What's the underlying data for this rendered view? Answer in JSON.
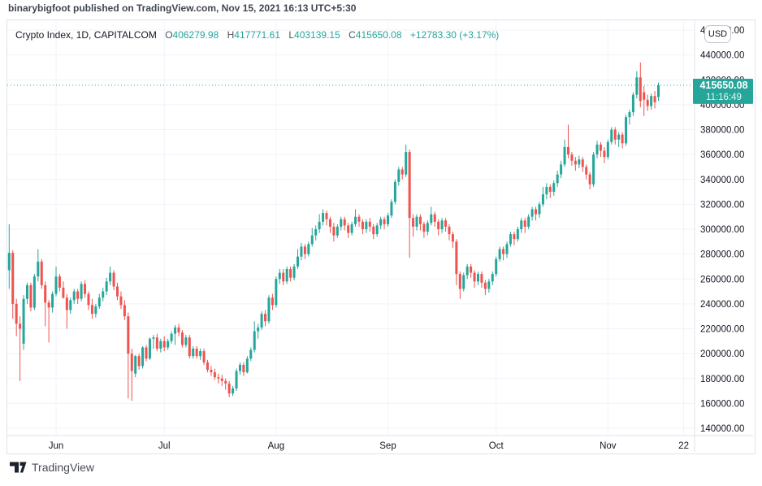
{
  "byline": "binarybigfoot published on TradingView.com, Nov 15, 2021 16:13 UTC+5:30",
  "legend": {
    "title": "Crypto Index, 1D, CAPITALCOM",
    "o_label": "O",
    "o_value": "406279.98",
    "h_label": "H",
    "h_value": "417771.61",
    "l_label": "L",
    "l_value": "403139.15",
    "c_label": "C",
    "c_value": "415650.08",
    "change": "+12783.30 (+3.17%)"
  },
  "currency_button_label": "USD",
  "price_label": {
    "price": "415650.08",
    "countdown": "11:16:49"
  },
  "watermark_text": "TradingView",
  "colors": {
    "up": "#26a69a",
    "down": "#ef5350",
    "grid": "#f0f3fa",
    "axis_text": "#131722",
    "frame_border": "#e0e3eb",
    "last_price_line": "#26a69a",
    "last_price_label_bg": "#26a69a",
    "legend_value": "#26a69a"
  },
  "chart_data": {
    "type": "candlestick",
    "symbol": "Crypto Index",
    "interval": "1D",
    "exchange": "CAPITALCOM",
    "start_date": "2021-05-19",
    "end_date": "2021-11-15",
    "last_close": 415650.08,
    "grid": true,
    "y_axis": {
      "min": 140000,
      "max": 460000,
      "step": 20000,
      "tick_labels": [
        "460000.00",
        "440000.00",
        "420000.00",
        "400000.00",
        "380000.00",
        "360000.00",
        "340000.00",
        "320000.00",
        "300000.00",
        "280000.00",
        "260000.00",
        "240000.00",
        "220000.00",
        "200000.00",
        "180000.00",
        "160000.00",
        "140000.00"
      ]
    },
    "x_axis": {
      "tick_labels": [
        "Jun",
        "Jul",
        "Aug",
        "Sep",
        "Oct",
        "Nov",
        "22"
      ],
      "tick_day_index": [
        13,
        43,
        74,
        105,
        135,
        166,
        187
      ]
    },
    "candles": [
      [
        267000,
        304000,
        252000,
        281000
      ],
      [
        281000,
        283000,
        228000,
        240000
      ],
      [
        240000,
        244000,
        214000,
        224000
      ],
      [
        224000,
        230000,
        178000,
        220000
      ],
      [
        208000,
        247000,
        203000,
        244000
      ],
      [
        244000,
        257000,
        240000,
        255000
      ],
      [
        255000,
        257000,
        234000,
        237000
      ],
      [
        237000,
        264000,
        235000,
        262000
      ],
      [
        262000,
        284000,
        258000,
        274000
      ],
      [
        274000,
        276000,
        252000,
        255000
      ],
      [
        255000,
        258000,
        222000,
        241000
      ],
      [
        241000,
        243000,
        209000,
        237000
      ],
      [
        237000,
        250000,
        233000,
        248000
      ],
      [
        248000,
        270000,
        246000,
        262000
      ],
      [
        262000,
        264000,
        250000,
        253000
      ],
      [
        253000,
        258000,
        244000,
        245000
      ],
      [
        245000,
        248000,
        220000,
        235000
      ],
      [
        235000,
        245000,
        232000,
        243000
      ],
      [
        243000,
        252000,
        240000,
        250000
      ],
      [
        250000,
        252000,
        240000,
        244000
      ],
      [
        244000,
        258000,
        242000,
        256000
      ],
      [
        256000,
        259000,
        245000,
        248000
      ],
      [
        248000,
        250000,
        235000,
        239000
      ],
      [
        239000,
        244000,
        228000,
        232000
      ],
      [
        232000,
        240000,
        229000,
        238000
      ],
      [
        238000,
        248000,
        236000,
        245000
      ],
      [
        245000,
        253000,
        242000,
        250000
      ],
      [
        250000,
        261000,
        247000,
        258000
      ],
      [
        258000,
        270000,
        255000,
        265000
      ],
      [
        265000,
        267000,
        251000,
        254000
      ],
      [
        254000,
        257000,
        243000,
        246000
      ],
      [
        246000,
        250000,
        236000,
        239000
      ],
      [
        239000,
        243000,
        227000,
        230000
      ],
      [
        230000,
        233000,
        164000,
        200000
      ],
      [
        200000,
        204000,
        162000,
        186000
      ],
      [
        184000,
        199000,
        181000,
        198000
      ],
      [
        198000,
        200000,
        187000,
        190000
      ],
      [
        190000,
        206000,
        188000,
        205000
      ],
      [
        205000,
        207000,
        194000,
        196000
      ],
      [
        196000,
        213000,
        195000,
        212000
      ],
      [
        212000,
        215000,
        204000,
        213000
      ],
      [
        213000,
        216000,
        202000,
        204000
      ],
      [
        204000,
        212000,
        201000,
        210000
      ],
      [
        210000,
        214000,
        202000,
        205000
      ],
      [
        205000,
        212000,
        203000,
        210000
      ],
      [
        210000,
        218000,
        208000,
        216000
      ],
      [
        216000,
        223000,
        207000,
        221000
      ],
      [
        221000,
        224000,
        214000,
        217000
      ],
      [
        217000,
        219000,
        205000,
        207000
      ],
      [
        207000,
        215000,
        205000,
        213000
      ],
      [
        213000,
        215000,
        196000,
        198000
      ],
      [
        198000,
        206000,
        196000,
        204000
      ],
      [
        204000,
        206000,
        196000,
        198000
      ],
      [
        198000,
        204000,
        195000,
        202000
      ],
      [
        202000,
        204000,
        191000,
        193000
      ],
      [
        193000,
        195000,
        185000,
        187000
      ],
      [
        187000,
        190000,
        182000,
        185000
      ],
      [
        185000,
        188000,
        179000,
        181000
      ],
      [
        181000,
        184000,
        176000,
        180000
      ],
      [
        180000,
        183000,
        174000,
        178000
      ],
      [
        178000,
        180000,
        171000,
        176000
      ],
      [
        176000,
        178000,
        165000,
        168000
      ],
      [
        168000,
        174000,
        166000,
        172000
      ],
      [
        172000,
        188000,
        170000,
        186000
      ],
      [
        186000,
        193000,
        183000,
        191000
      ],
      [
        191000,
        193000,
        182000,
        185000
      ],
      [
        185000,
        198000,
        184000,
        196000
      ],
      [
        196000,
        205000,
        194000,
        203000
      ],
      [
        203000,
        226000,
        201000,
        218000
      ],
      [
        218000,
        224000,
        212000,
        221000
      ],
      [
        221000,
        234000,
        219000,
        232000
      ],
      [
        232000,
        235000,
        222000,
        226000
      ],
      [
        226000,
        247000,
        224000,
        245000
      ],
      [
        245000,
        248000,
        235000,
        239000
      ],
      [
        239000,
        262000,
        237000,
        260000
      ],
      [
        260000,
        268000,
        256000,
        265000
      ],
      [
        265000,
        268000,
        255000,
        258000
      ],
      [
        258000,
        270000,
        256000,
        268000
      ],
      [
        268000,
        270000,
        258000,
        261000
      ],
      [
        261000,
        272000,
        259000,
        270000
      ],
      [
        270000,
        284000,
        268000,
        278000
      ],
      [
        278000,
        289000,
        275000,
        286000
      ],
      [
        286000,
        288000,
        276000,
        280000
      ],
      [
        280000,
        290000,
        278000,
        288000
      ],
      [
        288000,
        301000,
        286000,
        295000
      ],
      [
        295000,
        303000,
        291000,
        300000
      ],
      [
        300000,
        312000,
        297000,
        306000
      ],
      [
        306000,
        316000,
        303000,
        313000
      ],
      [
        313000,
        315000,
        303000,
        308000
      ],
      [
        308000,
        310000,
        297000,
        302000
      ],
      [
        302000,
        305000,
        290000,
        295000
      ],
      [
        295000,
        304000,
        293000,
        302000
      ],
      [
        302000,
        310000,
        299000,
        308000
      ],
      [
        308000,
        310000,
        299000,
        303000
      ],
      [
        303000,
        305000,
        293000,
        297000
      ],
      [
        297000,
        306000,
        295000,
        304000
      ],
      [
        304000,
        316000,
        302000,
        310000
      ],
      [
        310000,
        312000,
        302000,
        306000
      ],
      [
        306000,
        308000,
        296000,
        300000
      ],
      [
        300000,
        308000,
        297000,
        306000
      ],
      [
        306000,
        309000,
        298000,
        302000
      ],
      [
        302000,
        304000,
        292000,
        296000
      ],
      [
        296000,
        305000,
        294000,
        303000
      ],
      [
        303000,
        310000,
        300000,
        308000
      ],
      [
        308000,
        310000,
        300000,
        304000
      ],
      [
        304000,
        313000,
        302000,
        311000
      ],
      [
        311000,
        324000,
        309000,
        322000
      ],
      [
        322000,
        340000,
        320000,
        338000
      ],
      [
        338000,
        350000,
        335000,
        348000
      ],
      [
        348000,
        350000,
        340000,
        344000
      ],
      [
        344000,
        368000,
        342000,
        362000
      ],
      [
        362000,
        364000,
        277000,
        309000
      ],
      [
        309000,
        312000,
        294000,
        302000
      ],
      [
        302000,
        312000,
        299000,
        310000
      ],
      [
        310000,
        312000,
        299000,
        304000
      ],
      [
        304000,
        306000,
        293000,
        298000
      ],
      [
        298000,
        307000,
        295000,
        305000
      ],
      [
        305000,
        318000,
        303000,
        312000
      ],
      [
        312000,
        314000,
        302000,
        306000
      ],
      [
        306000,
        308000,
        295000,
        300000
      ],
      [
        300000,
        309000,
        297000,
        307000
      ],
      [
        307000,
        309000,
        298000,
        302000
      ],
      [
        302000,
        304000,
        291000,
        296000
      ],
      [
        296000,
        298000,
        285000,
        290000
      ],
      [
        290000,
        292000,
        255000,
        264000
      ],
      [
        264000,
        266000,
        244000,
        252000
      ],
      [
        252000,
        265000,
        250000,
        263000
      ],
      [
        263000,
        272000,
        260000,
        270000
      ],
      [
        270000,
        272000,
        261000,
        265000
      ],
      [
        265000,
        267000,
        253000,
        258000
      ],
      [
        258000,
        266000,
        255000,
        264000
      ],
      [
        264000,
        266000,
        253000,
        257000
      ],
      [
        257000,
        259000,
        247000,
        252000
      ],
      [
        252000,
        260000,
        249000,
        258000
      ],
      [
        258000,
        266000,
        255000,
        264000
      ],
      [
        264000,
        278000,
        262000,
        276000
      ],
      [
        276000,
        286000,
        274000,
        284000
      ],
      [
        284000,
        286000,
        275000,
        280000
      ],
      [
        280000,
        290000,
        277000,
        288000
      ],
      [
        288000,
        298000,
        286000,
        296000
      ],
      [
        296000,
        298000,
        287000,
        292000
      ],
      [
        292000,
        302000,
        290000,
        300000
      ],
      [
        300000,
        309000,
        297000,
        307000
      ],
      [
        307000,
        309000,
        297000,
        302000
      ],
      [
        302000,
        312000,
        300000,
        310000
      ],
      [
        310000,
        318000,
        307000,
        316000
      ],
      [
        316000,
        318000,
        307000,
        312000
      ],
      [
        312000,
        322000,
        309000,
        320000
      ],
      [
        320000,
        334000,
        318000,
        328000
      ],
      [
        328000,
        337000,
        324000,
        334000
      ],
      [
        334000,
        336000,
        325000,
        330000
      ],
      [
        330000,
        339000,
        327000,
        337000
      ],
      [
        337000,
        347000,
        334000,
        344000
      ],
      [
        344000,
        355000,
        341000,
        352000
      ],
      [
        352000,
        372000,
        350000,
        366000
      ],
      [
        366000,
        384000,
        357000,
        360000
      ],
      [
        360000,
        362000,
        351000,
        355000
      ],
      [
        355000,
        358000,
        347000,
        352000
      ],
      [
        352000,
        359000,
        349000,
        356000
      ],
      [
        356000,
        358000,
        346000,
        350000
      ],
      [
        350000,
        352000,
        340000,
        344000
      ],
      [
        344000,
        346000,
        332000,
        336000
      ],
      [
        336000,
        362000,
        334000,
        360000
      ],
      [
        360000,
        371000,
        357000,
        368000
      ],
      [
        368000,
        370000,
        358000,
        363000
      ],
      [
        363000,
        366000,
        353000,
        358000
      ],
      [
        358000,
        372000,
        356000,
        370000
      ],
      [
        370000,
        382000,
        368000,
        380000
      ],
      [
        380000,
        382000,
        368000,
        372000
      ],
      [
        372000,
        378000,
        366000,
        376000
      ],
      [
        376000,
        378000,
        365000,
        369000
      ],
      [
        369000,
        392000,
        367000,
        390000
      ],
      [
        390000,
        396000,
        384000,
        394000
      ],
      [
        394000,
        410000,
        391000,
        408000
      ],
      [
        408000,
        427000,
        405000,
        422000
      ],
      [
        422000,
        434000,
        398000,
        403000
      ],
      [
        410000,
        415000,
        391000,
        404000
      ],
      [
        404000,
        408000,
        395000,
        399000
      ],
      [
        399000,
        409000,
        396000,
        407000
      ],
      [
        407000,
        411000,
        397000,
        402000
      ],
      [
        406279.98,
        417771.61,
        403139.15,
        415650.08
      ]
    ]
  }
}
